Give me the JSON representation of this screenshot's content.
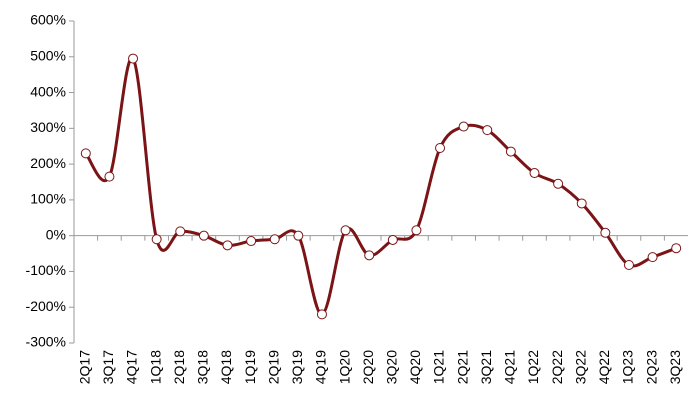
{
  "chart_data": {
    "type": "line",
    "categories": [
      "2Q17",
      "3Q17",
      "4Q17",
      "1Q18",
      "2Q18",
      "3Q18",
      "4Q18",
      "1Q19",
      "2Q19",
      "3Q19",
      "4Q19",
      "1Q20",
      "2Q20",
      "3Q20",
      "4Q20",
      "1Q21",
      "2Q21",
      "3Q21",
      "4Q21",
      "1Q22",
      "2Q22",
      "3Q22",
      "4Q22",
      "1Q23",
      "2Q23",
      "3Q23"
    ],
    "series": [
      {
        "color": "#7b1416",
        "values": [
          230,
          165,
          495,
          -10,
          12,
          0,
          -27,
          -15,
          -10,
          0,
          -220,
          15,
          -55,
          -12,
          15,
          245,
          305,
          295,
          235,
          175,
          145,
          90,
          8,
          -82,
          -60,
          -35
        ]
      }
    ],
    "ylim": [
      -300,
      600
    ],
    "yticks": [
      {
        "value": -300,
        "label": "-300%"
      },
      {
        "value": -200,
        "label": "-200%"
      },
      {
        "value": -100,
        "label": "-100%"
      },
      {
        "value": 0,
        "label": "0%"
      },
      {
        "value": 100,
        "label": "100%"
      },
      {
        "value": 200,
        "label": "200%"
      },
      {
        "value": 300,
        "label": "300%"
      },
      {
        "value": 400,
        "label": "400%"
      },
      {
        "value": 500,
        "label": "500%"
      },
      {
        "value": 600,
        "label": "600%"
      }
    ]
  }
}
